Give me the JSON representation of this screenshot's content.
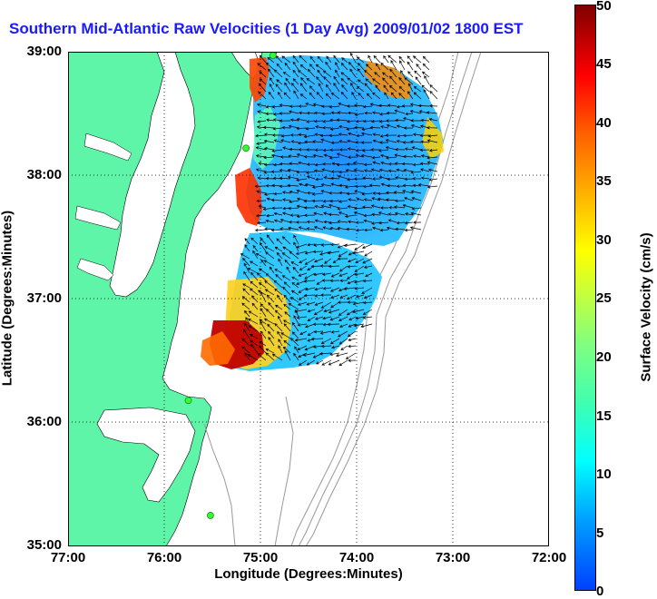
{
  "title": "Southern Mid-Atlantic Raw Velocities (1 Day Avg) 2009/01/02 1800 EST",
  "xlabel": "Longitude (Degrees:Minutes)",
  "ylabel": "Latitude (Degrees:Minutes)",
  "colorbar": {
    "label": "Surface Velocity (cm/s)",
    "ticks": [
      "0",
      "5",
      "10",
      "15",
      "20",
      "25",
      "30",
      "35",
      "40",
      "45",
      "50"
    ],
    "range": [
      0,
      50
    ]
  },
  "axes": {
    "lon_ticks": [
      "77:00",
      "76:00",
      "75:00",
      "74:00",
      "73:00",
      "72:00"
    ],
    "lat_ticks": [
      "39:00",
      "38:00",
      "37:00",
      "36:00",
      "35:00"
    ],
    "lon_range": [
      -77,
      -72
    ],
    "lat_range": [
      35,
      39
    ]
  },
  "colors": {
    "land": "#5ff5a8",
    "title": "#1a1aff",
    "station": "#33ff33",
    "bathymetry": "#999999"
  },
  "stations": [
    {
      "lon": -74.87,
      "lat": 38.97
    },
    {
      "lon": -75.15,
      "lat": 38.22
    },
    {
      "lon": -75.75,
      "lat": 36.18
    },
    {
      "lon": -75.52,
      "lat": 35.25
    }
  ]
}
